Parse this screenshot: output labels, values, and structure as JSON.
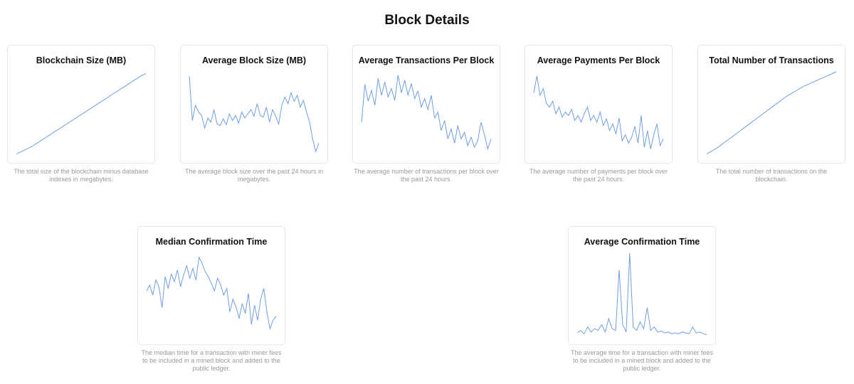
{
  "page": {
    "title": "Block Details"
  },
  "colors": {
    "line": "#6f9ee4",
    "card_border": "#e6e6e6",
    "description": "#9a9a9a"
  },
  "charts": [
    {
      "title": "Blockchain Size (MB)",
      "description": "The total size of the blockchain minus database indexes in megabytes."
    },
    {
      "title": "Average Block Size (MB)",
      "description": "The average block size over the past 24 hours in megabytes."
    },
    {
      "title": "Average Transactions Per Block",
      "description": "The average number of transactions per block over the past 24 hours."
    },
    {
      "title": "Average Payments Per Block",
      "description": "The average number of payments per block over the past 24 hours."
    },
    {
      "title": "Total Number of Transactions",
      "description": "The total number of transactions on the blockchain."
    },
    {
      "title": "Median Confirmation Time",
      "description": "The median time for a transaction with miner fees to be included in a mined block and added to the public ledger."
    },
    {
      "title": "Average Confirmation Time",
      "description": "The average time for a transaction with miner fees to be included in a mined block and added to the public ledger."
    }
  ],
  "chart_data": [
    {
      "type": "line",
      "title": "Blockchain Size (MB)",
      "xlabel": "",
      "ylabel": "",
      "grid": false,
      "values": [
        2,
        5,
        8,
        11,
        15,
        19,
        23,
        27,
        31,
        35,
        39,
        43,
        47,
        51,
        55,
        59,
        63,
        67,
        71,
        75,
        79,
        83,
        87,
        91,
        95,
        98
      ]
    },
    {
      "type": "line",
      "title": "Average Block Size (MB)",
      "xlabel": "",
      "ylabel": "",
      "grid": false,
      "values": [
        95,
        42,
        60,
        52,
        48,
        33,
        45,
        40,
        55,
        38,
        36,
        44,
        37,
        50,
        42,
        48,
        39,
        52,
        45,
        50,
        55,
        47,
        62,
        48,
        46,
        58,
        40,
        55,
        47,
        38,
        60,
        70,
        62,
        75,
        65,
        72,
        58,
        66,
        52,
        40,
        20,
        5,
        15
      ]
    },
    {
      "type": "line",
      "title": "Average Transactions Per Block",
      "xlabel": "",
      "ylabel": "",
      "grid": false,
      "values": [
        40,
        85,
        65,
        78,
        60,
        92,
        72,
        88,
        70,
        80,
        66,
        96,
        75,
        90,
        72,
        86,
        68,
        77,
        58,
        68,
        55,
        72,
        45,
        52,
        30,
        42,
        20,
        32,
        15,
        36,
        20,
        28,
        12,
        22,
        10,
        18,
        40,
        25,
        8,
        20
      ]
    },
    {
      "type": "line",
      "title": "Average Payments Per Block",
      "xlabel": "",
      "ylabel": "",
      "grid": false,
      "values": [
        75,
        95,
        72,
        80,
        62,
        58,
        65,
        50,
        58,
        46,
        52,
        48,
        55,
        42,
        48,
        40,
        50,
        58,
        42,
        48,
        40,
        52,
        36,
        44,
        30,
        38,
        26,
        45,
        18,
        25,
        15,
        22,
        35,
        15,
        48,
        10,
        30,
        8,
        25,
        38,
        12,
        20
      ]
    },
    {
      "type": "line",
      "title": "Total Number of Transactions",
      "xlabel": "",
      "ylabel": "",
      "grid": false,
      "values": [
        2,
        6,
        10,
        15,
        20,
        25,
        30,
        35,
        40,
        45,
        50,
        55,
        60,
        65,
        70,
        74,
        78,
        82,
        85,
        88,
        91,
        94,
        97,
        100
      ]
    },
    {
      "type": "line",
      "title": "Median Confirmation Time",
      "xlabel": "",
      "ylabel": "",
      "grid": false,
      "values": [
        55,
        62,
        50,
        68,
        60,
        35,
        72,
        58,
        75,
        66,
        80,
        60,
        74,
        85,
        70,
        82,
        68,
        95,
        88,
        78,
        72,
        64,
        55,
        70,
        62,
        50,
        58,
        30,
        45,
        36,
        22,
        40,
        28,
        52,
        15,
        38,
        20,
        45,
        58,
        30,
        10,
        20,
        25
      ]
    },
    {
      "type": "line",
      "title": "Average Confirmation Time",
      "xlabel": "",
      "ylabel": "",
      "grid": false,
      "values": [
        5,
        8,
        4,
        12,
        6,
        10,
        8,
        15,
        6,
        22,
        10,
        8,
        80,
        15,
        6,
        100,
        12,
        8,
        18,
        10,
        35,
        8,
        12,
        6,
        7,
        5,
        6,
        4,
        5,
        4,
        6,
        5,
        4,
        12,
        5,
        6,
        4,
        3
      ]
    }
  ]
}
